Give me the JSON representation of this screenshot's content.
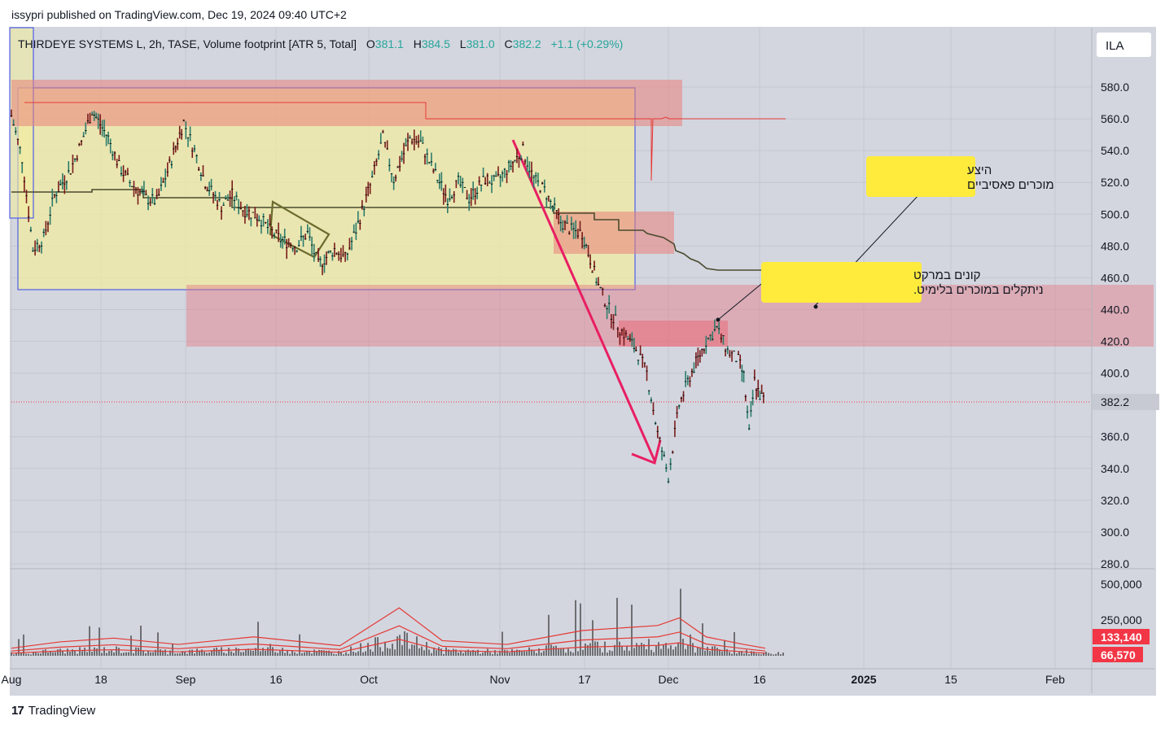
{
  "publisher_line": "issypri published on TradingView.com, Dec 19, 2024 09:40 UTC+2",
  "brand": "TradingView",
  "brand_icon": "tradingview-logo-icon",
  "chart_data": {
    "type": "ohlc",
    "symbol": "THIRDEYE SYSTEMS L",
    "interval": "2h",
    "exchange": "TASE",
    "indicator": "Volume footprint [ATR 5, Total]",
    "header_text": "THIRDEYE SYSTEMS L, 2h, TASE, Volume footprint [ATR 5, Total]",
    "ohlc": {
      "o_label": "O",
      "o": "381.1",
      "h_label": "H",
      "h": "384.5",
      "l_label": "L",
      "l": "381.0",
      "c_label": "C",
      "c": "382.2",
      "change": "+1.1 (+0.29%)"
    },
    "currency": "ILA",
    "last_price": "382.2",
    "y_axis": {
      "ticks": [
        "580.0",
        "560.0",
        "540.0",
        "520.0",
        "500.0",
        "480.0",
        "460.0",
        "440.0",
        "420.0",
        "400.0",
        "360.0",
        "340.0",
        "320.0",
        "300.0",
        "280.0"
      ],
      "ylim": [
        280,
        580
      ]
    },
    "x_axis": {
      "ticks": [
        "Aug",
        "18",
        "Sep",
        "16",
        "Oct",
        "Nov",
        "17",
        "Dec",
        "16",
        "2025",
        "15",
        "Feb"
      ]
    },
    "volume_axis": {
      "ticks": [
        "500,000",
        "250,000"
      ],
      "labels": [
        "133,140",
        "66,570"
      ]
    },
    "price_path": [
      [
        "2024-08-01",
        562
      ],
      [
        "2024-08-03",
        535
      ],
      [
        "2024-08-05",
        478
      ],
      [
        "2024-08-07",
        485
      ],
      [
        "2024-08-09",
        512
      ],
      [
        "2024-08-12",
        528
      ],
      [
        "2024-08-14",
        545
      ],
      [
        "2024-08-16",
        565
      ],
      [
        "2024-08-19",
        548
      ],
      [
        "2024-08-21",
        530
      ],
      [
        "2024-08-23",
        520
      ],
      [
        "2024-08-26",
        510
      ],
      [
        "2024-08-28",
        508
      ],
      [
        "2024-08-30",
        527
      ],
      [
        "2024-09-02",
        558
      ],
      [
        "2024-09-04",
        540
      ],
      [
        "2024-09-06",
        520
      ],
      [
        "2024-09-09",
        505
      ],
      [
        "2024-09-11",
        512
      ],
      [
        "2024-09-13",
        503
      ],
      [
        "2024-09-16",
        498
      ],
      [
        "2024-09-18",
        490
      ],
      [
        "2024-09-20",
        484
      ],
      [
        "2024-09-23",
        480
      ],
      [
        "2024-09-25",
        488
      ],
      [
        "2024-09-27",
        468
      ],
      [
        "2024-09-30",
        478
      ],
      [
        "2024-10-02",
        472
      ],
      [
        "2024-10-04",
        490
      ],
      [
        "2024-10-07",
        522
      ],
      [
        "2024-10-09",
        548
      ],
      [
        "2024-10-11",
        522
      ],
      [
        "2024-10-14",
        548
      ],
      [
        "2024-10-16",
        545
      ],
      [
        "2024-10-18",
        530
      ],
      [
        "2024-10-21",
        510
      ],
      [
        "2024-10-23",
        520
      ],
      [
        "2024-10-25",
        510
      ],
      [
        "2024-10-28",
        522
      ],
      [
        "2024-10-30",
        520
      ],
      [
        "2024-11-01",
        528
      ],
      [
        "2024-11-04",
        540
      ],
      [
        "2024-11-06",
        522
      ],
      [
        "2024-11-08",
        515
      ],
      [
        "2024-11-11",
        495
      ],
      [
        "2024-11-13",
        490
      ],
      [
        "2024-11-15",
        488
      ],
      [
        "2024-11-18",
        455
      ],
      [
        "2024-11-20",
        440
      ],
      [
        "2024-11-22",
        428
      ],
      [
        "2024-11-25",
        415
      ],
      [
        "2024-11-27",
        400
      ],
      [
        "2024-11-29",
        362
      ],
      [
        "2024-12-01",
        335
      ],
      [
        "2024-12-03",
        380
      ],
      [
        "2024-12-05",
        398
      ],
      [
        "2024-12-08",
        420
      ],
      [
        "2024-12-10",
        428
      ],
      [
        "2024-12-12",
        414
      ],
      [
        "2024-12-14",
        408
      ],
      [
        "2024-12-15",
        398
      ],
      [
        "2024-12-16",
        362
      ],
      [
        "2024-12-17",
        395
      ],
      [
        "2024-12-18",
        386
      ],
      [
        "2024-12-19",
        382.2
      ]
    ],
    "volume_path": [
      [
        "2024-08-01",
        60000
      ],
      [
        "2024-08-10",
        110000
      ],
      [
        "2024-08-20",
        140000
      ],
      [
        "2024-09-01",
        90000
      ],
      [
        "2024-09-15",
        150000
      ],
      [
        "2024-10-01",
        80000
      ],
      [
        "2024-10-12",
        380000
      ],
      [
        "2024-10-20",
        120000
      ],
      [
        "2024-11-01",
        90000
      ],
      [
        "2024-11-15",
        200000
      ],
      [
        "2024-11-29",
        240000
      ],
      [
        "2024-12-03",
        300000
      ],
      [
        "2024-12-08",
        150000
      ],
      [
        "2024-12-15",
        90000
      ],
      [
        "2024-12-19",
        60000
      ]
    ],
    "annotations": [
      {
        "text_lines": [
          "היצע",
          "מוכרים פאסיביים"
        ]
      },
      {
        "text_lines": [
          "קונים במרקט",
          "ניתקלים במוכרים בלימיט."
        ]
      }
    ],
    "colors": {
      "accent_red": "#e91e63",
      "zone_red": "#e57373",
      "zone_yellow": "#f5eeaa",
      "annotation_bg": "#ffeb3b",
      "last_price_red": "#f23645",
      "up_green": "#26a69a"
    }
  }
}
